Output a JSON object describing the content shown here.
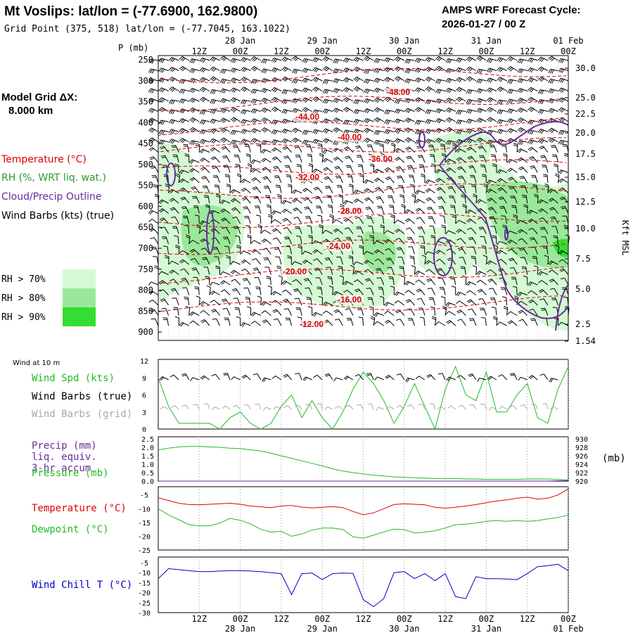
{
  "header": {
    "site_title": "Mt Voslips:  lat/lon = (-77.6900, 162.9800)",
    "grid_point": "Grid Point (375, 518) lat/lon = (-77.7045, 163.1022)",
    "cycle_label": "AMPS WRF Forecast Cycle:",
    "cycle_value": "2026-01-27 / 00  Z"
  },
  "legend": {
    "model_grid_label": "Model Grid ΔX:",
    "model_grid_value": "8.000 km",
    "temperature": "Temperature (°C)",
    "rh": "RH (%, WRT liq. wat.)",
    "cloud": "Cloud/Precip Outline",
    "wind_barbs": "Wind Barbs (kts) (true)",
    "rh70": "RH > 70%",
    "rh80": "RH > 80%",
    "rh90": "RH > 90%",
    "rh_colors": [
      "#d4fad4",
      "#9ae89a",
      "#33dd33"
    ]
  },
  "colors": {
    "temperature": "#e00000",
    "rh": "#2a9a2a",
    "cloud": "#6a2a9a",
    "wind_chill": "#0000c0",
    "green_line": "#22bb22",
    "grid_barbs": "#aaaaaa"
  },
  "time_axis": {
    "ticks": [
      "12Z",
      "00Z",
      "12Z",
      "00Z",
      "12Z",
      "00Z",
      "12Z",
      "00Z",
      "12Z",
      "00Z"
    ],
    "dates": [
      "28 Jan",
      "29 Jan",
      "30 Jan",
      "31 Jan",
      "01 Feb"
    ]
  },
  "chart_data": [
    {
      "type": "contour",
      "ylabel_left": "P (mb)",
      "ylabel_right": "Kft MSL",
      "pressure_ticks": [
        250,
        300,
        350,
        400,
        450,
        500,
        550,
        600,
        650,
        700,
        750,
        800,
        850,
        900
      ],
      "height_ticks": [
        "30.0",
        "25.0",
        "22.5",
        "20.0",
        "17.5",
        "15.0",
        "12.5",
        "10.0",
        "7.5",
        "5.0",
        "2.5",
        "1.54"
      ],
      "temperature_contour_labels": [
        "-48.00",
        "-44.00",
        "-40.00",
        "-36.00",
        "-32.00",
        "-28.00",
        "-24.00",
        "-20.00",
        "-16.00",
        "-12.00"
      ]
    },
    {
      "type": "line",
      "panel_title": "Wind at 10 m",
      "series_labels": [
        "Wind Spd (kts)",
        "Wind Barbs (true)",
        "Wind Barbs (grid)"
      ],
      "y_ticks": [
        0,
        3,
        6,
        9,
        12
      ],
      "ylim": [
        0,
        12
      ],
      "values": [
        9,
        4,
        1,
        1,
        1,
        1,
        0,
        2,
        3,
        1,
        0,
        1,
        4,
        6,
        2,
        5,
        2,
        0,
        3,
        7,
        10,
        8,
        5,
        1,
        4,
        8,
        4,
        0,
        7,
        11,
        6,
        5,
        10,
        3,
        3,
        6,
        8,
        2,
        1,
        7,
        11
      ]
    },
    {
      "type": "line",
      "series_labels": [
        "Precip (mm)",
        "liq. equiv.",
        "3-hr accum",
        "Pressure (mb)"
      ],
      "y_ticks_left": [
        "2.5",
        "2.0",
        "1.5",
        "1.0",
        "0.5",
        "0.0"
      ],
      "y_ticks_right": [
        930,
        928,
        926,
        924,
        922,
        920
      ],
      "unit_right": "(mb)",
      "ylim_pressure": [
        920,
        930
      ],
      "pressure": [
        927.4,
        927.8,
        928.1,
        928.2,
        928.2,
        928.1,
        928.0,
        927.8,
        927.7,
        927.4,
        927.1,
        926.6,
        926.0,
        925.4,
        924.8,
        924.2,
        923.6,
        922.9,
        922.4,
        922.0,
        921.7,
        921.4,
        921.2,
        921.0,
        920.9,
        920.8,
        920.7,
        920.6,
        920.6,
        920.6,
        920.5,
        920.5,
        920.4,
        920.4,
        920.4,
        920.4,
        920.5,
        920.5,
        920.5,
        920.4,
        920.3
      ],
      "precip": [
        0,
        0,
        0,
        0,
        0,
        0,
        0,
        0,
        0,
        0,
        0,
        0,
        0,
        0,
        0,
        0,
        0,
        0,
        0,
        0,
        0,
        0,
        0,
        0,
        0,
        0,
        0,
        0,
        0,
        0,
        0,
        0,
        0,
        0,
        0,
        0,
        0,
        0,
        0,
        0.02,
        0.03
      ]
    },
    {
      "type": "line",
      "series_labels": [
        "Temperature (°C)",
        "Dewpoint (°C)"
      ],
      "y_ticks": [
        -5,
        -10,
        -15,
        -20,
        -25
      ],
      "ylim": [
        -25,
        -2
      ],
      "temperature": [
        -6,
        -7,
        -8,
        -8.5,
        -8.6,
        -8.4,
        -8.2,
        -8,
        -8.4,
        -9,
        -9.3,
        -9.6,
        -9,
        -8.8,
        -9.4,
        -9.7,
        -9.5,
        -9.2,
        -9.6,
        -11,
        -12.2,
        -11.5,
        -10,
        -8.5,
        -8.2,
        -8.4,
        -8.6,
        -9.5,
        -9.8,
        -9.5,
        -9,
        -8.5,
        -7.8,
        -7.2,
        -6.8,
        -6.2,
        -5.8,
        -6.5,
        -6.2,
        -5,
        -2.8
      ],
      "dewpoint": [
        -10,
        -12.2,
        -14,
        -15.8,
        -16.2,
        -16.2,
        -15.2,
        -13.5,
        -14.2,
        -15.5,
        -17.5,
        -18.5,
        -18.2,
        -20,
        -19.2,
        -17.8,
        -17,
        -17,
        -17.5,
        -20.2,
        -20.7,
        -19.6,
        -18.4,
        -17.4,
        -17.6,
        -18.8,
        -18.5,
        -18,
        -17,
        -15.8,
        -15.6,
        -15.2,
        -14.6,
        -14.3,
        -14.6,
        -14.3,
        -14.6,
        -14.3,
        -13.7,
        -13.2,
        -12.3
      ]
    },
    {
      "type": "line",
      "series_labels": [
        "Wind Chill T (°C)"
      ],
      "y_ticks": [
        -5,
        -10,
        -15,
        -20,
        -25,
        -30
      ],
      "ylim": [
        -30,
        -5
      ],
      "values": [
        -13,
        -8,
        -8.5,
        -9,
        -9.5,
        -9.5,
        -9.2,
        -9,
        -9,
        -9.2,
        -9.5,
        -10,
        -10.5,
        -21,
        -10.5,
        -10.2,
        -13.5,
        -10.5,
        -10.2,
        -10.4,
        -23.5,
        -27,
        -23,
        -10,
        -9.5,
        -13,
        -10.5,
        -14,
        -10.5,
        -22,
        -23,
        -12,
        -13,
        -13,
        -13.2,
        -13.5,
        -10.5,
        -7,
        -6.5,
        -5.8,
        -9
      ]
    }
  ]
}
